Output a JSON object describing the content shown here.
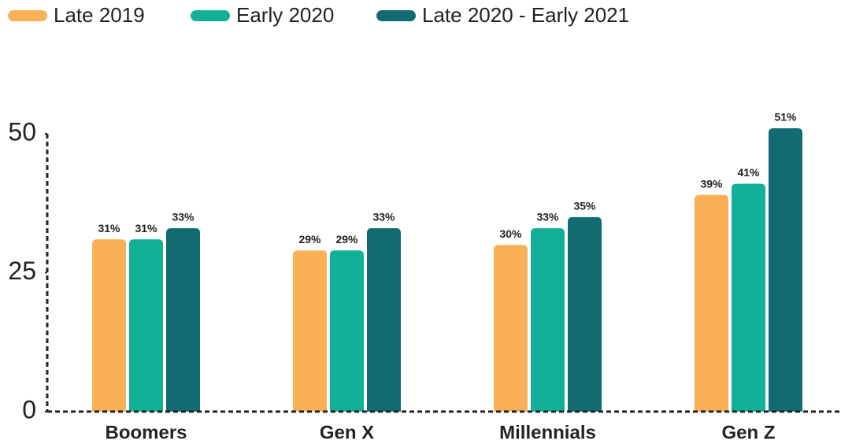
{
  "chart_data": {
    "type": "bar",
    "categories": [
      "Boomers",
      "Gen X",
      "Millennials",
      "Gen Z"
    ],
    "series": [
      {
        "name": "Late 2019",
        "color": "#f9b057",
        "values": [
          31,
          29,
          30,
          39
        ],
        "value_labels": [
          "31%",
          "29%",
          "30%",
          "39%"
        ]
      },
      {
        "name": "Early 2020",
        "color": "#13b098",
        "values": [
          31,
          29,
          33,
          41
        ],
        "value_labels": [
          "31%",
          "29%",
          "33%",
          "41%"
        ]
      },
      {
        "name": "Late 2020 - Early 2021",
        "color": "#116b70",
        "values": [
          33,
          33,
          35,
          51
        ],
        "value_labels": [
          "33%",
          "33%",
          "35%",
          "51%"
        ]
      }
    ],
    "ylim": [
      0,
      50
    ],
    "yticks": [
      0,
      25,
      50
    ],
    "legend": "top-left"
  }
}
